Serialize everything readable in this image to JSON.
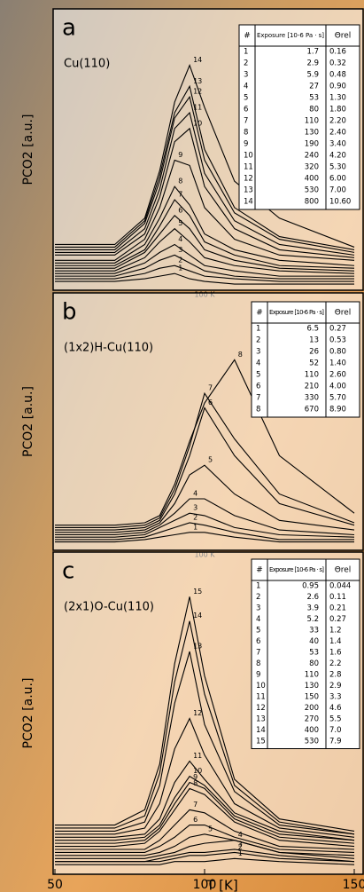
{
  "chart_data": [
    {
      "type": "line",
      "panel_label": "a",
      "subtitle": "Cu(110)",
      "y_label": "PCO2 [a.u.]",
      "annotation": "100 K",
      "xlim": [
        50,
        150
      ],
      "ylim": [
        0,
        100
      ],
      "color": "#000000",
      "x": [
        50,
        70,
        80,
        85,
        90,
        95,
        100,
        110,
        125,
        150
      ],
      "series": [
        {
          "name": "1",
          "values": [
            2,
            2,
            3,
            4,
            5,
            3,
            2,
            1,
            1,
            1
          ]
        },
        {
          "name": "2",
          "values": [
            3,
            3,
            5,
            7,
            8,
            6,
            4,
            3,
            2,
            2
          ]
        },
        {
          "name": "3",
          "values": [
            4,
            4,
            7,
            10,
            12,
            9,
            6,
            4,
            3,
            3
          ]
        },
        {
          "name": "4",
          "values": [
            5,
            5,
            9,
            13,
            16,
            12,
            8,
            6,
            4,
            4
          ]
        },
        {
          "name": "5",
          "values": [
            6,
            6,
            11,
            17,
            22,
            17,
            11,
            8,
            6,
            5
          ]
        },
        {
          "name": "6",
          "values": [
            7,
            7,
            13,
            20,
            27,
            22,
            14,
            10,
            7,
            6
          ]
        },
        {
          "name": "7",
          "values": [
            8,
            8,
            14,
            23,
            33,
            27,
            17,
            12,
            8,
            7
          ]
        },
        {
          "name": "8",
          "values": [
            9,
            9,
            16,
            26,
            38,
            31,
            20,
            14,
            10,
            8
          ]
        },
        {
          "name": "9",
          "values": [
            10,
            10,
            18,
            30,
            48,
            46,
            30,
            18,
            12,
            10
          ]
        },
        {
          "name": "10",
          "values": [
            12,
            12,
            20,
            34,
            55,
            60,
            38,
            22,
            14,
            11
          ]
        },
        {
          "name": "11",
          "values": [
            13,
            13,
            22,
            37,
            60,
            66,
            43,
            25,
            16,
            12
          ]
        },
        {
          "name": "12",
          "values": [
            14,
            14,
            24,
            40,
            64,
            72,
            48,
            28,
            18,
            13
          ]
        },
        {
          "name": "13",
          "values": [
            15,
            15,
            25,
            42,
            66,
            76,
            52,
            30,
            19,
            14
          ]
        },
        {
          "name": "14",
          "values": [
            16,
            16,
            26,
            44,
            70,
            84,
            68,
            40,
            26,
            15
          ]
        }
      ],
      "table": {
        "headers": [
          "#",
          "Exposure [10-6 Pa · s]",
          "Θrel"
        ],
        "rows": [
          [
            "1",
            "1.7",
            "0.16"
          ],
          [
            "2",
            "2.9",
            "0.32"
          ],
          [
            "3",
            "5.9",
            "0.48"
          ],
          [
            "4",
            "27",
            "0.90"
          ],
          [
            "5",
            "53",
            "1.30"
          ],
          [
            "6",
            "80",
            "1.80"
          ],
          [
            "7",
            "110",
            "2.20"
          ],
          [
            "8",
            "130",
            "2.40"
          ],
          [
            "9",
            "190",
            "3.40"
          ],
          [
            "10",
            "240",
            "4.20"
          ],
          [
            "11",
            "320",
            "5.30"
          ],
          [
            "12",
            "400",
            "6.00"
          ],
          [
            "13",
            "530",
            "7.00"
          ],
          [
            "14",
            "800",
            "10.60"
          ]
        ]
      }
    },
    {
      "type": "line",
      "panel_label": "b",
      "subtitle": "(1x2)H-Cu(110)",
      "y_label": "PCO2 [a.u.]",
      "annotation": "100 K",
      "xlim": [
        50,
        150
      ],
      "ylim": [
        0,
        100
      ],
      "color": "#000000",
      "x": [
        50,
        70,
        80,
        85,
        90,
        95,
        100,
        110,
        125,
        150
      ],
      "series": [
        {
          "name": "1",
          "values": [
            2,
            2,
            3,
            4,
            5,
            6,
            6,
            4,
            2,
            2
          ]
        },
        {
          "name": "2",
          "values": [
            3,
            3,
            4,
            6,
            8,
            10,
            9,
            6,
            3,
            3
          ]
        },
        {
          "name": "3",
          "values": [
            4,
            4,
            5,
            8,
            11,
            14,
            13,
            8,
            5,
            4
          ]
        },
        {
          "name": "4",
          "values": [
            5,
            5,
            6,
            9,
            14,
            20,
            20,
            13,
            7,
            5
          ]
        },
        {
          "name": "5",
          "values": [
            6,
            6,
            7,
            10,
            18,
            30,
            34,
            22,
            11,
            7
          ]
        },
        {
          "name": "6",
          "values": [
            7,
            7,
            8,
            11,
            22,
            38,
            58,
            38,
            18,
            9
          ]
        },
        {
          "name": "7",
          "values": [
            8,
            8,
            9,
            12,
            24,
            42,
            64,
            45,
            22,
            10
          ]
        },
        {
          "name": "8",
          "values": [
            9,
            9,
            10,
            13,
            26,
            44,
            60,
            78,
            38,
            14
          ]
        }
      ],
      "table": {
        "headers": [
          "#",
          "Exposure [10-6 Pa · s]",
          "Θrel"
        ],
        "rows": [
          [
            "1",
            "6.5",
            "0.27"
          ],
          [
            "2",
            "13",
            "0.53"
          ],
          [
            "3",
            "26",
            "0.80"
          ],
          [
            "4",
            "52",
            "1.40"
          ],
          [
            "5",
            "110",
            "2.60"
          ],
          [
            "6",
            "210",
            "4.00"
          ],
          [
            "7",
            "330",
            "5.70"
          ],
          [
            "8",
            "670",
            "8.90"
          ]
        ]
      }
    },
    {
      "type": "line",
      "panel_label": "c",
      "subtitle": "(2x1)O-Cu(110)",
      "y_label": "PCO2 [a.u.]",
      "x_label": "T [K]",
      "xlim": [
        50,
        150
      ],
      "ylim": [
        0,
        100
      ],
      "xticks": [
        50,
        100,
        150
      ],
      "color": "#000000",
      "x": [
        50,
        70,
        80,
        85,
        90,
        95,
        100,
        110,
        125,
        150
      ],
      "series": [
        {
          "name": "1",
          "values": [
            2,
            2,
            2,
            2,
            3,
            3,
            3,
            4,
            3,
            2
          ]
        },
        {
          "name": "2",
          "values": [
            3,
            3,
            3,
            3,
            4,
            5,
            5,
            6,
            4,
            3
          ]
        },
        {
          "name": "3",
          "values": [
            3,
            3,
            3,
            4,
            5,
            6,
            6,
            7,
            5,
            3
          ]
        },
        {
          "name": "4",
          "values": [
            4,
            4,
            4,
            5,
            6,
            8,
            9,
            10,
            6,
            4
          ]
        },
        {
          "name": "5",
          "values": [
            5,
            5,
            5,
            6,
            8,
            11,
            12,
            10,
            6,
            5
          ]
        },
        {
          "name": "6",
          "values": [
            6,
            6,
            6,
            8,
            11,
            15,
            15,
            11,
            7,
            6
          ]
        },
        {
          "name": "7",
          "values": [
            7,
            7,
            7,
            10,
            15,
            20,
            19,
            13,
            8,
            7
          ]
        },
        {
          "name": "8",
          "values": [
            8,
            8,
            9,
            13,
            20,
            27,
            25,
            16,
            10,
            8
          ]
        },
        {
          "name": "9",
          "values": [
            9,
            9,
            10,
            14,
            22,
            29,
            27,
            17,
            11,
            9
          ]
        },
        {
          "name": "10",
          "values": [
            10,
            10,
            11,
            15,
            24,
            31,
            28,
            18,
            12,
            10
          ]
        },
        {
          "name": "11",
          "values": [
            11,
            11,
            12,
            17,
            29,
            36,
            30,
            19,
            13,
            10
          ]
        },
        {
          "name": "12",
          "values": [
            12,
            12,
            14,
            22,
            40,
            50,
            38,
            22,
            14,
            11
          ]
        },
        {
          "name": "13",
          "values": [
            13,
            13,
            16,
            28,
            55,
            72,
            48,
            26,
            15,
            12
          ]
        },
        {
          "name": "14",
          "values": [
            14,
            14,
            18,
            32,
            62,
            82,
            58,
            28,
            16,
            12
          ]
        },
        {
          "name": "15",
          "values": [
            15,
            15,
            20,
            35,
            68,
            90,
            64,
            30,
            17,
            13
          ]
        }
      ],
      "table": {
        "headers": [
          "#",
          "Exposure [10-6 Pa · s]",
          "Θrel"
        ],
        "rows": [
          [
            "1",
            "0.95",
            "0.044"
          ],
          [
            "2",
            "2.6",
            "0.11"
          ],
          [
            "3",
            "3.9",
            "0.21"
          ],
          [
            "4",
            "5.2",
            "0.27"
          ],
          [
            "5",
            "33",
            "1.2"
          ],
          [
            "6",
            "40",
            "1.4"
          ],
          [
            "7",
            "53",
            "1.6"
          ],
          [
            "8",
            "80",
            "2.2"
          ],
          [
            "9",
            "110",
            "2.8"
          ],
          [
            "10",
            "130",
            "2.9"
          ],
          [
            "11",
            "150",
            "3.3"
          ],
          [
            "12",
            "200",
            "4.6"
          ],
          [
            "13",
            "270",
            "5.5"
          ],
          [
            "14",
            "400",
            "7.0"
          ],
          [
            "15",
            "530",
            "7.9"
          ]
        ]
      }
    }
  ]
}
